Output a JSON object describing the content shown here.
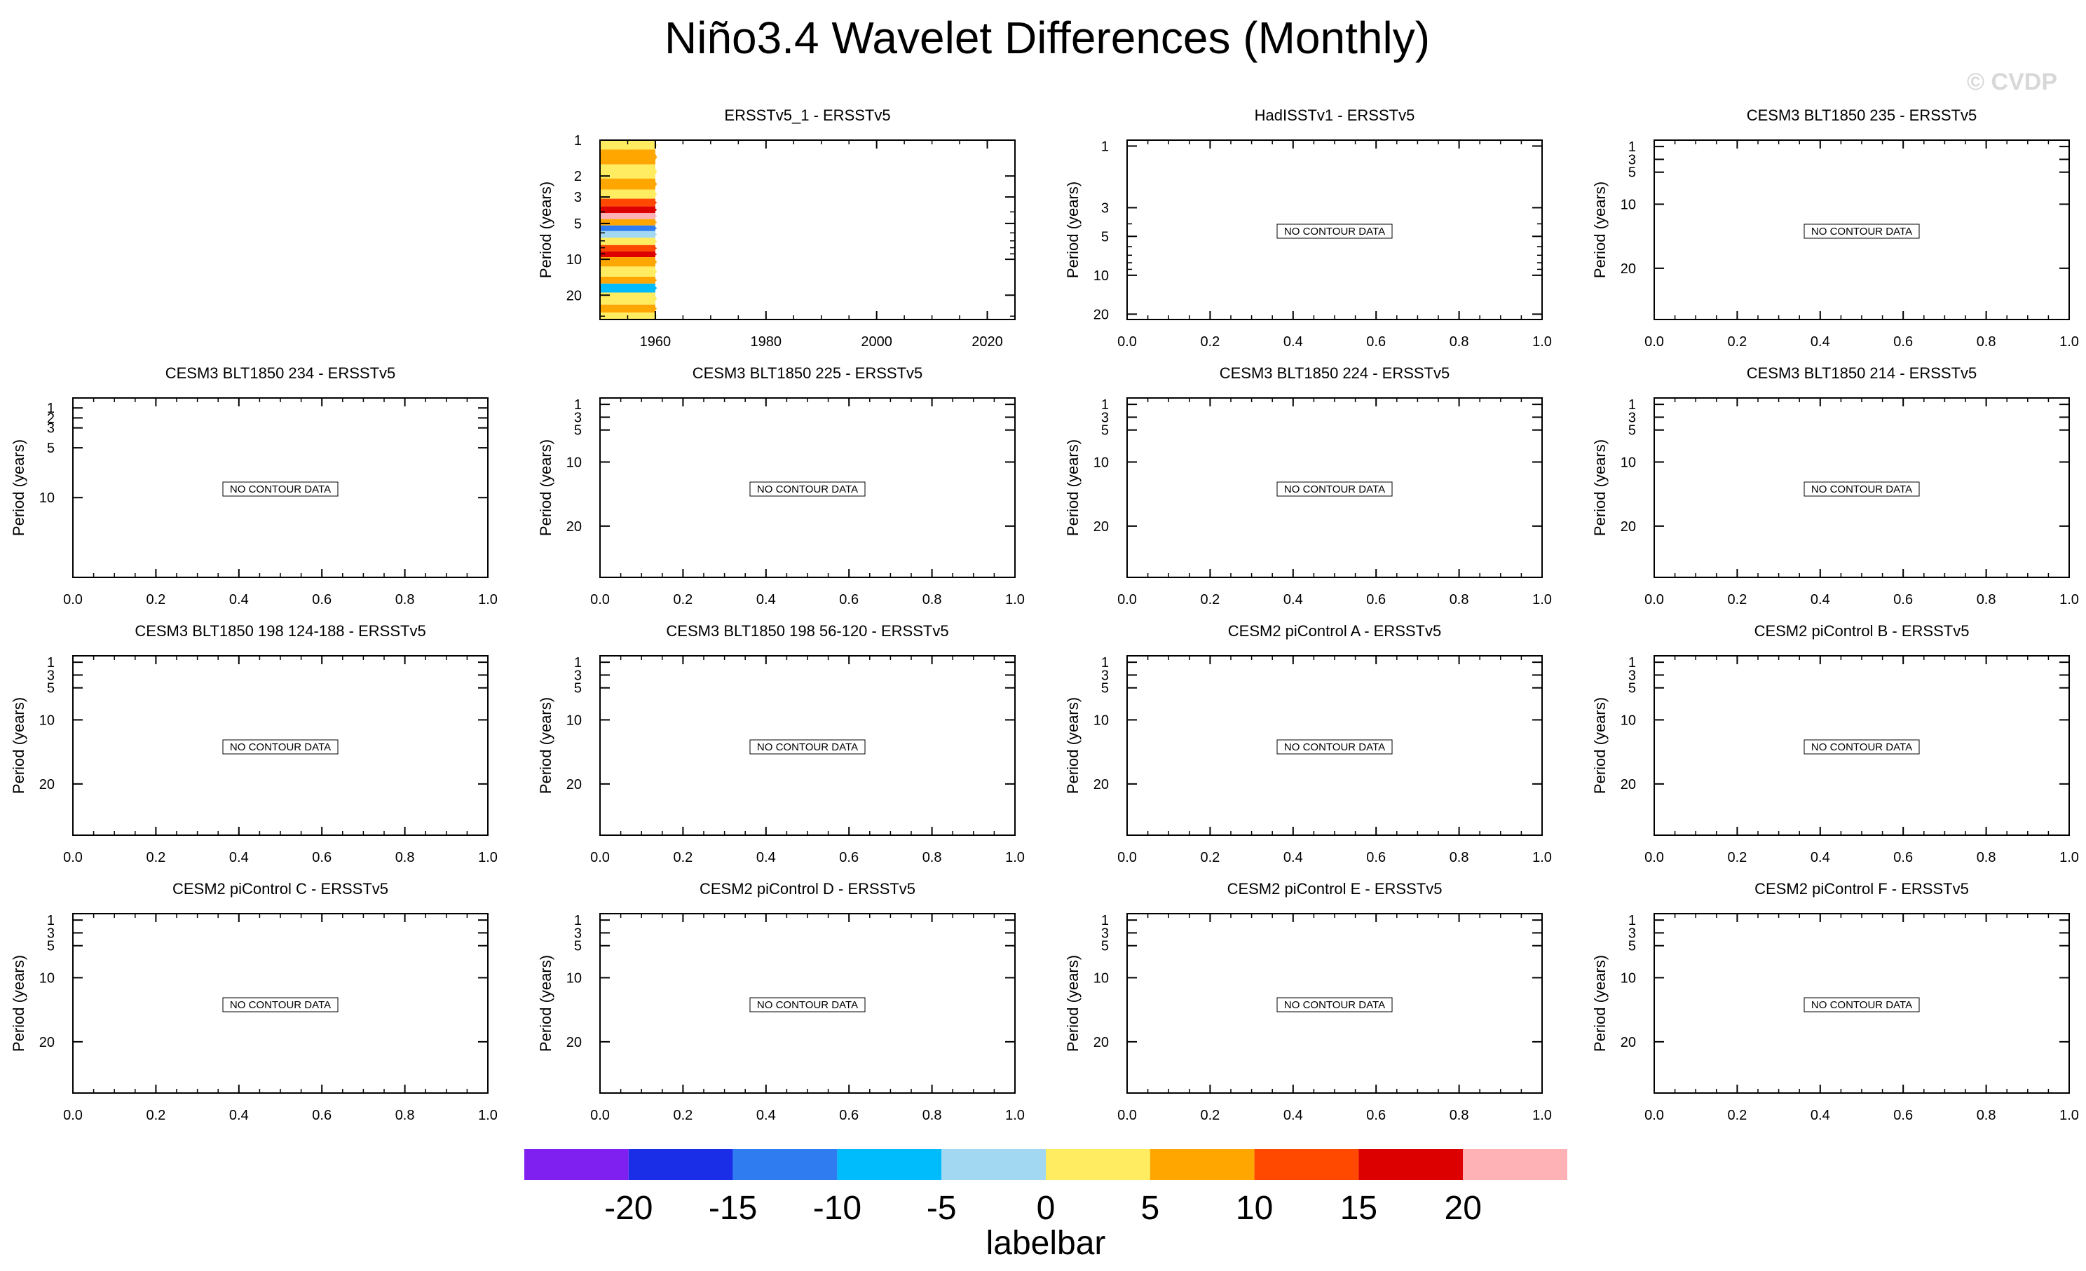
{
  "figure": {
    "title": "Niño3.4 Wavelet Differences (Monthly)",
    "watermark": "© CVDP",
    "no_data_label": "NO CONTOUR DATA",
    "colors": {
      "watermark": "#d8d8d8",
      "frame": "#000000",
      "no_data_box": "#000000"
    }
  },
  "labelbar": {
    "title": "labelbar",
    "colors": [
      "#8020f0",
      "#1a2ee8",
      "#2f7cf0",
      "#00bcfc",
      "#a2d8f2",
      "#ffec60",
      "#ffa600",
      "#ff4800",
      "#dd0000",
      "#ffb2b6"
    ],
    "levels": [
      "-20",
      "-15",
      "-10",
      "-5",
      "0",
      "5",
      "10",
      "15",
      "20"
    ]
  },
  "chart_data": [
    {
      "type": "heatmap",
      "title": "ERSSTv5_1 - ERSSTv5",
      "ylabel": "Period (years)",
      "y_scale": "log",
      "y_inverted": true,
      "xlim": [
        1950,
        2025
      ],
      "ylim": [
        1,
        32
      ],
      "x_ticks": [
        "1960",
        "1980",
        "2000",
        "2020"
      ],
      "y_ticks": [
        "1",
        "2",
        "3",
        "5",
        "10",
        "20"
      ],
      "data_x_range": [
        1950,
        1960
      ],
      "bands": [
        {
          "y": [
            1,
            1.2
          ],
          "level": "0"
        },
        {
          "y": [
            1.2,
            1.6
          ],
          "level": "5"
        },
        {
          "y": [
            1.6,
            2.1
          ],
          "level": "0"
        },
        {
          "y": [
            2.1,
            2.6
          ],
          "level": "5"
        },
        {
          "y": [
            2.6,
            3.1
          ],
          "level": "0"
        },
        {
          "y": [
            3.1,
            3.6
          ],
          "level": "10"
        },
        {
          "y": [
            3.6,
            4.1
          ],
          "level": "15"
        },
        {
          "y": [
            4.1,
            4.6
          ],
          "level": "20"
        },
        {
          "y": [
            4.6,
            5.2
          ],
          "level": "5"
        },
        {
          "y": [
            5.2,
            5.8
          ],
          "level": "-15"
        },
        {
          "y": [
            5.8,
            6.6
          ],
          "level": "-5"
        },
        {
          "y": [
            6.6,
            7.6
          ],
          "level": "0"
        },
        {
          "y": [
            7.6,
            8.6
          ],
          "level": "10"
        },
        {
          "y": [
            8.6,
            9.6
          ],
          "level": "15"
        },
        {
          "y": [
            9.6,
            11.5
          ],
          "level": "5"
        },
        {
          "y": [
            11.5,
            14
          ],
          "level": "0"
        },
        {
          "y": [
            14,
            16
          ],
          "level": "5"
        },
        {
          "y": [
            16,
            19
          ],
          "level": "-10"
        },
        {
          "y": [
            19,
            24
          ],
          "level": "0"
        },
        {
          "y": [
            24,
            28
          ],
          "level": "5"
        },
        {
          "y": [
            28,
            32
          ],
          "level": "0"
        }
      ]
    },
    {
      "type": "heatmap",
      "title": "HadISSTv1 - ERSSTv5",
      "ylabel": "Period (years)",
      "y_scale": "log",
      "y_inverted": true,
      "xlim": [
        0,
        1
      ],
      "ylim": [
        0.9,
        22
      ],
      "x_ticks": [
        "0.0",
        "0.2",
        "0.4",
        "0.6",
        "0.8",
        "1.0"
      ],
      "y_ticks": [
        "1",
        "3",
        "5",
        "10",
        "20"
      ],
      "y_tick_values": [
        1,
        3,
        5,
        10,
        20
      ],
      "data": []
    },
    {
      "type": "heatmap",
      "title": "CESM3 BLT1850 235 - ERSSTv5",
      "ylabel": "Period (years)",
      "y_scale": "linear",
      "y_inverted": true,
      "xlim": [
        0,
        1
      ],
      "ylim": [
        0,
        28
      ],
      "x_ticks": [
        "0.0",
        "0.2",
        "0.4",
        "0.6",
        "0.8",
        "1.0"
      ],
      "y_ticks": [
        "1",
        "3",
        "5",
        "10",
        "20"
      ],
      "y_tick_values": [
        1,
        3,
        5,
        10,
        20
      ],
      "data": []
    },
    {
      "type": "heatmap",
      "title": "CESM3 BLT1850 234 - ERSSTv5",
      "ylabel": "Period (years)",
      "y_scale": "linear",
      "y_inverted": true,
      "xlim": [
        0,
        1
      ],
      "ylim": [
        0,
        18
      ],
      "x_ticks": [
        "0.0",
        "0.2",
        "0.4",
        "0.6",
        "0.8",
        "1.0"
      ],
      "y_ticks": [
        "1",
        "2",
        "3",
        "5",
        "10"
      ],
      "y_tick_values": [
        1,
        2,
        3,
        5,
        10
      ],
      "data": []
    },
    {
      "type": "heatmap",
      "title": "CESM3 BLT1850 225 - ERSSTv5",
      "ylabel": "Period (years)",
      "y_scale": "linear",
      "y_inverted": true,
      "xlim": [
        0,
        1
      ],
      "ylim": [
        0,
        28
      ],
      "x_ticks": [
        "0.0",
        "0.2",
        "0.4",
        "0.6",
        "0.8",
        "1.0"
      ],
      "y_ticks": [
        "1",
        "3",
        "5",
        "10",
        "20"
      ],
      "y_tick_values": [
        1,
        3,
        5,
        10,
        20
      ],
      "data": []
    },
    {
      "type": "heatmap",
      "title": "CESM3 BLT1850 224 - ERSSTv5",
      "ylabel": "Period (years)",
      "y_scale": "linear",
      "y_inverted": true,
      "xlim": [
        0,
        1
      ],
      "ylim": [
        0,
        28
      ],
      "x_ticks": [
        "0.0",
        "0.2",
        "0.4",
        "0.6",
        "0.8",
        "1.0"
      ],
      "y_ticks": [
        "1",
        "3",
        "5",
        "10",
        "20"
      ],
      "y_tick_values": [
        1,
        3,
        5,
        10,
        20
      ],
      "data": []
    },
    {
      "type": "heatmap",
      "title": "CESM3 BLT1850 214 - ERSSTv5",
      "ylabel": "Period (years)",
      "y_scale": "linear",
      "y_inverted": true,
      "xlim": [
        0,
        1
      ],
      "ylim": [
        0,
        28
      ],
      "x_ticks": [
        "0.0",
        "0.2",
        "0.4",
        "0.6",
        "0.8",
        "1.0"
      ],
      "y_ticks": [
        "1",
        "3",
        "5",
        "10",
        "20"
      ],
      "y_tick_values": [
        1,
        3,
        5,
        10,
        20
      ],
      "data": []
    },
    {
      "type": "heatmap",
      "title": "CESM3 BLT1850 198 124-188 - ERSSTv5",
      "ylabel": "Period (years)",
      "y_scale": "linear",
      "y_inverted": true,
      "xlim": [
        0,
        1
      ],
      "ylim": [
        0,
        28
      ],
      "x_ticks": [
        "0.0",
        "0.2",
        "0.4",
        "0.6",
        "0.8",
        "1.0"
      ],
      "y_ticks": [
        "1",
        "3",
        "5",
        "10",
        "20"
      ],
      "y_tick_values": [
        1,
        3,
        5,
        10,
        20
      ],
      "data": []
    },
    {
      "type": "heatmap",
      "title": "CESM3 BLT1850 198 56-120 - ERSSTv5",
      "ylabel": "Period (years)",
      "y_scale": "linear",
      "y_inverted": true,
      "xlim": [
        0,
        1
      ],
      "ylim": [
        0,
        28
      ],
      "x_ticks": [
        "0.0",
        "0.2",
        "0.4",
        "0.6",
        "0.8",
        "1.0"
      ],
      "y_ticks": [
        "1",
        "3",
        "5",
        "10",
        "20"
      ],
      "y_tick_values": [
        1,
        3,
        5,
        10,
        20
      ],
      "data": []
    },
    {
      "type": "heatmap",
      "title": "CESM2 piControl A - ERSSTv5",
      "ylabel": "Period (years)",
      "y_scale": "linear",
      "y_inverted": true,
      "xlim": [
        0,
        1
      ],
      "ylim": [
        0,
        28
      ],
      "x_ticks": [
        "0.0",
        "0.2",
        "0.4",
        "0.6",
        "0.8",
        "1.0"
      ],
      "y_ticks": [
        "1",
        "3",
        "5",
        "10",
        "20"
      ],
      "y_tick_values": [
        1,
        3,
        5,
        10,
        20
      ],
      "data": []
    },
    {
      "type": "heatmap",
      "title": "CESM2 piControl B - ERSSTv5",
      "ylabel": "Period (years)",
      "y_scale": "linear",
      "y_inverted": true,
      "xlim": [
        0,
        1
      ],
      "ylim": [
        0,
        28
      ],
      "x_ticks": [
        "0.0",
        "0.2",
        "0.4",
        "0.6",
        "0.8",
        "1.0"
      ],
      "y_ticks": [
        "1",
        "3",
        "5",
        "10",
        "20"
      ],
      "y_tick_values": [
        1,
        3,
        5,
        10,
        20
      ],
      "data": []
    },
    {
      "type": "heatmap",
      "title": "CESM2 piControl C - ERSSTv5",
      "ylabel": "Period (years)",
      "y_scale": "linear",
      "y_inverted": true,
      "xlim": [
        0,
        1
      ],
      "ylim": [
        0,
        28
      ],
      "x_ticks": [
        "0.0",
        "0.2",
        "0.4",
        "0.6",
        "0.8",
        "1.0"
      ],
      "y_ticks": [
        "1",
        "3",
        "5",
        "10",
        "20"
      ],
      "y_tick_values": [
        1,
        3,
        5,
        10,
        20
      ],
      "data": []
    },
    {
      "type": "heatmap",
      "title": "CESM2 piControl D - ERSSTv5",
      "ylabel": "Period (years)",
      "y_scale": "linear",
      "y_inverted": true,
      "xlim": [
        0,
        1
      ],
      "ylim": [
        0,
        28
      ],
      "x_ticks": [
        "0.0",
        "0.2",
        "0.4",
        "0.6",
        "0.8",
        "1.0"
      ],
      "y_ticks": [
        "1",
        "3",
        "5",
        "10",
        "20"
      ],
      "y_tick_values": [
        1,
        3,
        5,
        10,
        20
      ],
      "data": []
    },
    {
      "type": "heatmap",
      "title": "CESM2 piControl E - ERSSTv5",
      "ylabel": "Period (years)",
      "y_scale": "linear",
      "y_inverted": true,
      "xlim": [
        0,
        1
      ],
      "ylim": [
        0,
        28
      ],
      "x_ticks": [
        "0.0",
        "0.2",
        "0.4",
        "0.6",
        "0.8",
        "1.0"
      ],
      "y_ticks": [
        "1",
        "3",
        "5",
        "10",
        "20"
      ],
      "y_tick_values": [
        1,
        3,
        5,
        10,
        20
      ],
      "data": []
    },
    {
      "type": "heatmap",
      "title": "CESM2 piControl F - ERSSTv5",
      "ylabel": "Period (years)",
      "y_scale": "linear",
      "y_inverted": true,
      "xlim": [
        0,
        1
      ],
      "ylim": [
        0,
        28
      ],
      "x_ticks": [
        "0.0",
        "0.2",
        "0.4",
        "0.6",
        "0.8",
        "1.0"
      ],
      "y_ticks": [
        "1",
        "3",
        "5",
        "10",
        "20"
      ],
      "y_tick_values": [
        1,
        3,
        5,
        10,
        20
      ],
      "data": []
    }
  ]
}
